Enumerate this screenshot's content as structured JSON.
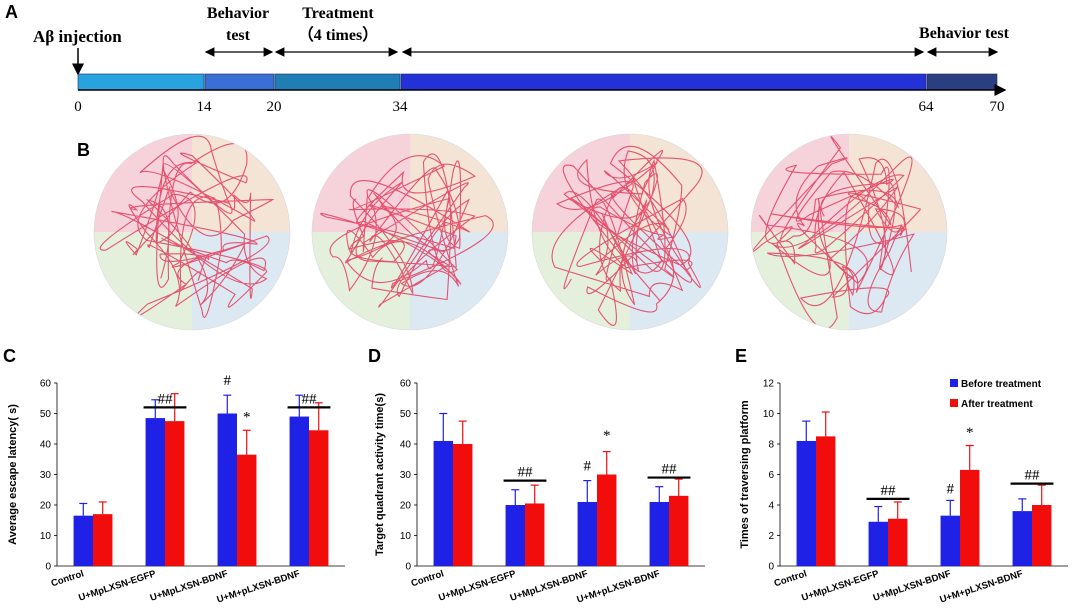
{
  "panelA": {
    "letter": "A",
    "injection_label": "Aβ injection",
    "behavior_test_1": [
      "Behavior",
      "test"
    ],
    "treatment_label": [
      "Treatment",
      "（4 times）"
    ],
    "behavior_test_2": "Behavior test",
    "day_ticks": [
      "0",
      "14",
      "20",
      "34",
      "64",
      "70"
    ],
    "segment_colors": [
      "#29a3e0",
      "#3a6fd6",
      "#1f7fb5",
      "#2431d6",
      "#2b3f80"
    ]
  },
  "panelB": {
    "letter": "B",
    "quadrant_colors": [
      "#f6d3da",
      "#f3e4d6",
      "#dde9f2",
      "#e4f0dc"
    ],
    "path_color": "#e33a5a"
  },
  "series_colors": {
    "before": "#1f22e6",
    "after": "#f20d0d"
  },
  "chart_data": [
    {
      "letter": "C",
      "type": "bar",
      "ylabel": "Average escape latency( s)",
      "ylim": [
        0,
        60
      ],
      "yticks": [
        "0",
        "10",
        "20",
        "30",
        "40",
        "50",
        "60"
      ],
      "categories": [
        "Control",
        "U+MpLXSN-EGFP",
        "U+MpLXSN-BDNF",
        "U+M+pLXSN-BDNF"
      ],
      "series": [
        {
          "name": "Before treatment",
          "values": [
            16.5,
            48.5,
            50,
            49
          ],
          "errors": [
            4,
            6,
            6,
            7
          ]
        },
        {
          "name": "After treatment",
          "values": [
            17,
            47.5,
            36.5,
            44.5
          ],
          "errors": [
            4,
            9,
            8,
            9
          ]
        }
      ],
      "annotations": [
        {
          "category": 1,
          "text": "##",
          "bracket": true,
          "y": 52
        },
        {
          "category": 2,
          "text": "#",
          "bracket": false,
          "y": 58,
          "series": 0
        },
        {
          "category": 2,
          "text": "*",
          "bracket": false,
          "y": 46,
          "series": 1
        },
        {
          "category": 3,
          "text": "##",
          "bracket": true,
          "y": 52
        }
      ]
    },
    {
      "letter": "D",
      "type": "bar",
      "ylabel": "Target quadrant activity time(s)",
      "ylim": [
        0,
        60
      ],
      "yticks": [
        "0",
        "10",
        "20",
        "30",
        "40",
        "50",
        "60"
      ],
      "categories": [
        "Control",
        "U+MpLXSN-EGFP",
        "U+MpLXSN-BDNF",
        "U+M+pLXSN-BDNF"
      ],
      "series": [
        {
          "name": "Before treatment",
          "values": [
            41,
            20,
            21,
            21
          ],
          "errors": [
            9,
            5,
            7,
            5
          ]
        },
        {
          "name": "After treatment",
          "values": [
            40,
            20.5,
            30,
            23
          ],
          "errors": [
            7.5,
            6,
            7.5,
            5.5
          ]
        }
      ],
      "annotations": [
        {
          "category": 1,
          "text": "##",
          "bracket": true,
          "y": 28
        },
        {
          "category": 2,
          "text": "#",
          "bracket": false,
          "y": 30,
          "series": 0
        },
        {
          "category": 2,
          "text": "*",
          "bracket": false,
          "y": 40,
          "series": 1
        },
        {
          "category": 3,
          "text": "##",
          "bracket": true,
          "y": 29
        }
      ]
    },
    {
      "letter": "E",
      "type": "bar",
      "ylabel": "Times of traversing platform",
      "ylim": [
        0,
        12
      ],
      "yticks": [
        "0",
        "2",
        "4",
        "6",
        "8",
        "10",
        "12"
      ],
      "categories": [
        "Control",
        "U+MpLXSN-EGFP",
        "U+MpLXSN-BDNF",
        "U+M+pLXSN-BDNF"
      ],
      "series": [
        {
          "name": "Before treatment",
          "values": [
            8.2,
            2.9,
            3.3,
            3.6
          ],
          "errors": [
            1.3,
            1,
            1,
            0.8
          ]
        },
        {
          "name": "After treatment",
          "values": [
            8.5,
            3.1,
            6.3,
            4
          ],
          "errors": [
            1.6,
            1.1,
            1.6,
            1.3
          ]
        }
      ],
      "legend": [
        "Before treatment",
        "After treatment"
      ],
      "legend_position": "top-right",
      "annotations": [
        {
          "category": 1,
          "text": "##",
          "bracket": true,
          "y": 4.4
        },
        {
          "category": 2,
          "text": "#",
          "bracket": false,
          "y": 4.5,
          "series": 0
        },
        {
          "category": 2,
          "text": "*",
          "bracket": false,
          "y": 8.2,
          "series": 1
        },
        {
          "category": 3,
          "text": "##",
          "bracket": true,
          "y": 5.4
        }
      ]
    }
  ]
}
